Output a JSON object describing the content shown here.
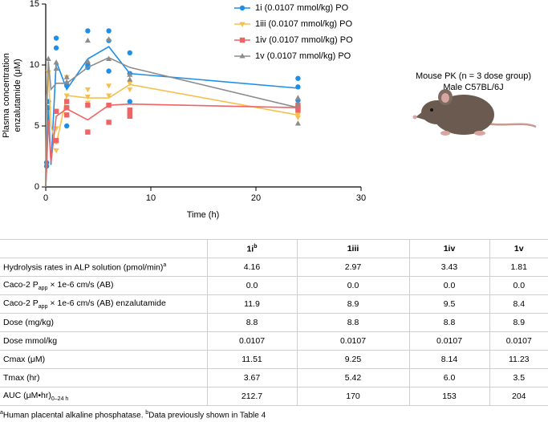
{
  "chart_data": {
    "type": "line",
    "xlabel": "Time (h)",
    "ylabel": [
      "Plasma concentration",
      "enzalutamide (μM)"
    ],
    "xlim": [
      0,
      30
    ],
    "xticks": [
      0,
      10,
      20,
      30
    ],
    "ylim": [
      0,
      15
    ],
    "yticks": [
      0,
      5,
      10,
      15
    ],
    "x": [
      0,
      0.083,
      0.25,
      0.5,
      1,
      2,
      4,
      6,
      8,
      24
    ],
    "series": [
      {
        "name": "1i (0.0107 mmol/kg) PO",
        "color": "#1e8fe8",
        "marker": "circle",
        "values": [
          0,
          1.8,
          6.7,
          1.8,
          10.3,
          8.0,
          10.5,
          11.5,
          9.3,
          8.1
        ],
        "points": {
          "x": [
            0.083,
            0.083,
            0.25,
            0.25,
            1,
            1,
            2,
            2,
            4,
            4,
            4,
            6,
            6,
            6,
            8,
            8,
            8,
            24,
            24,
            24
          ],
          "y": [
            1.7,
            2.0,
            7.0,
            6.5,
            12.2,
            11.4,
            8.3,
            5.0,
            12.8,
            10.0,
            9.8,
            12.8,
            12.0,
            9.5,
            11.0,
            9.3,
            7.0,
            8.9,
            8.2,
            7.1
          ]
        }
      },
      {
        "name": "1iii (0.0107 mmol/kg) PO",
        "color": "#f5c04e",
        "marker": "triangle-down",
        "values": [
          0,
          7.5,
          9.3,
          5.0,
          3.5,
          7.5,
          7.3,
          7.3,
          8.4,
          5.9
        ],
        "points": {
          "x": [
            0.25,
            1,
            1,
            2,
            2,
            4,
            4,
            4,
            6,
            6,
            8,
            8,
            24,
            24,
            24
          ],
          "y": [
            9.4,
            3.0,
            4.8,
            9.0,
            7.5,
            8.0,
            7.4,
            6.9,
            8.3,
            7.5,
            8.5,
            8.0,
            6.0,
            5.9,
            5.7
          ]
        }
      },
      {
        "name": "1iv (0.0107 mmol/kg) PO",
        "color": "#ee6464",
        "marker": "square",
        "values": [
          0,
          1.5,
          5.5,
          2.0,
          5.8,
          6.4,
          5.5,
          6.7,
          6.8,
          6.5
        ],
        "points": {
          "x": [
            1,
            1,
            2,
            2,
            2,
            4,
            4,
            6,
            6,
            8,
            8,
            8,
            24,
            24,
            24
          ],
          "y": [
            6.2,
            3.8,
            6.5,
            7.0,
            5.9,
            4.5,
            6.7,
            5.3,
            6.7,
            6.3,
            6.0,
            5.8,
            6.7,
            6.5,
            6.3
          ]
        }
      },
      {
        "name": "1v (0.0107 mmol/kg) PO",
        "color": "#8c8c8c",
        "marker": "triangle-up",
        "values": [
          0,
          6.0,
          10.3,
          8.0,
          8.5,
          8.5,
          9.8,
          10.6,
          9.8,
          6.5
        ],
        "points": {
          "x": [
            0.25,
            1,
            1,
            2,
            2,
            4,
            4,
            6,
            6,
            8,
            8,
            24,
            24,
            24
          ],
          "y": [
            10.5,
            9.7,
            10.2,
            8.6,
            9.0,
            12.0,
            10.3,
            12.1,
            10.5,
            8.8,
            9.2,
            7.3,
            6.8,
            5.2
          ]
        }
      }
    ]
  },
  "mouse_caption": [
    "Mouse PK (n = 3 dose group)",
    "Male C57BL/6J"
  ],
  "table": {
    "header": [
      [
        "1i",
        {
          "sup": "b"
        }
      ],
      "1iii",
      "1iv",
      "1v"
    ],
    "rows": [
      [
        [
          "Hydrolysis rates in ALP solution (pmol/min)",
          {
            "sup": "a"
          }
        ],
        "4.16",
        "2.97",
        "3.43",
        "1.81"
      ],
      [
        [
          "Caco-2 P",
          {
            "sub": "app"
          },
          " × 1e-6 cm/s (AB)"
        ],
        "0.0",
        "0.0",
        "0.0",
        "0.0"
      ],
      [
        [
          "Caco-2 P",
          {
            "sub": "app"
          },
          " × 1e-6 cm/s (AB) enzalutamide"
        ],
        "11.9",
        "8.9",
        "9.5",
        "8.4"
      ],
      [
        "Dose (mg/kg)",
        "8.8",
        "8.8",
        "8.8",
        "8.9"
      ],
      [
        "Dose mmol/kg",
        "0.0107",
        "0.0107",
        "0.0107",
        "0.0107"
      ],
      [
        "Cmax (μM)",
        "11.51",
        "9.25",
        "8.14",
        "11.23"
      ],
      [
        "Tmax (hr)",
        "3.67",
        "5.42",
        "6.0",
        "3.5"
      ],
      [
        [
          "AUC (μM•hr)",
          {
            "sub": "0–24 h"
          }
        ],
        "212.7",
        "170",
        "153",
        "204"
      ]
    ]
  },
  "footnote": [
    {
      "sup": "a"
    },
    "Human placental alkaline phosphatase. ",
    {
      "sup": "b"
    },
    "Data previously shown in Table 4"
  ]
}
